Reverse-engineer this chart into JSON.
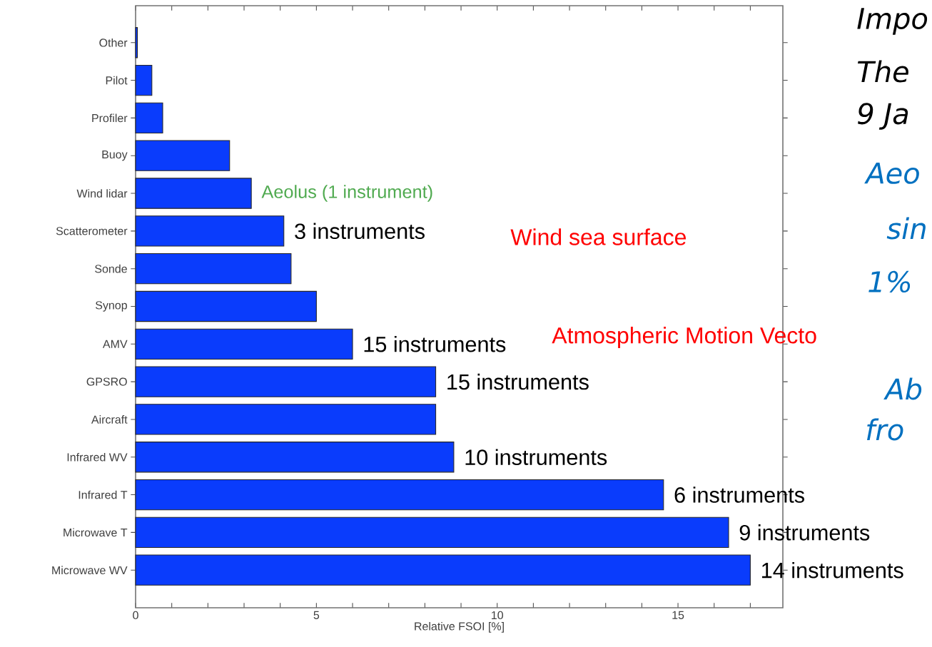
{
  "chart_data": {
    "type": "bar",
    "orientation": "horizontal",
    "xlabel": "Relative FSOI [%]",
    "categories": [
      "Other",
      "Pilot",
      "Profiler",
      "Buoy",
      "Wind lidar",
      "Scatterometer",
      "Sonde",
      "Synop",
      "AMV",
      "GPSRO",
      "Aircraft",
      "Infrared WV",
      "Infrared T",
      "Microwave T",
      "Microwave WV"
    ],
    "values": [
      0.05,
      0.45,
      0.75,
      2.6,
      3.2,
      4.1,
      4.3,
      5.0,
      6.0,
      8.3,
      8.3,
      8.8,
      14.6,
      16.4,
      17.0
    ],
    "color": "#0a3cfc",
    "xlim": [
      0,
      17.9
    ],
    "xticks": [
      0,
      {
        "value": 1,
        "label": null
      },
      {
        "value": 2,
        "label": null
      },
      {
        "value": 3,
        "label": null
      },
      {
        "value": 4,
        "label": null
      },
      5,
      {
        "value": 6,
        "label": null
      },
      {
        "value": 7,
        "label": null
      },
      {
        "value": 8,
        "label": null
      },
      {
        "value": 9,
        "label": null
      },
      10,
      {
        "value": 11,
        "label": null
      },
      {
        "value": 12,
        "label": null
      },
      {
        "value": 13,
        "label": null
      },
      {
        "value": 14,
        "label": null
      },
      15,
      {
        "value": 16,
        "label": null
      },
      {
        "value": 17,
        "label": null
      }
    ],
    "annotations": [
      {
        "text": "Aeolus (1 instrument)",
        "x": 3.2,
        "y": "Wind lidar"
      },
      {
        "text": "3 instruments",
        "x": 4.1,
        "y": "Scatterometer"
      },
      {
        "text": "15 instruments",
        "x": 6.0,
        "y": "AMV"
      },
      {
        "text": "15 instruments",
        "x": 8.3,
        "y": "GPSRO"
      },
      {
        "text": "10 instruments",
        "x": 8.8,
        "y": "Infrared WV"
      },
      {
        "text": "6 instruments",
        "x": 14.6,
        "y": "Infrared T"
      },
      {
        "text": "9 instruments",
        "x": 16.4,
        "y": "Microwave T"
      },
      {
        "text": "14 instruments",
        "x": 17.0,
        "y": "Microwave WV"
      },
      "Impo",
      "The",
      "9 Ja",
      "Aeo",
      "Wind sea surface",
      "sin",
      "1%",
      "Atmospheric  Motion Vecto",
      "Ab",
      "fro"
    ]
  }
}
